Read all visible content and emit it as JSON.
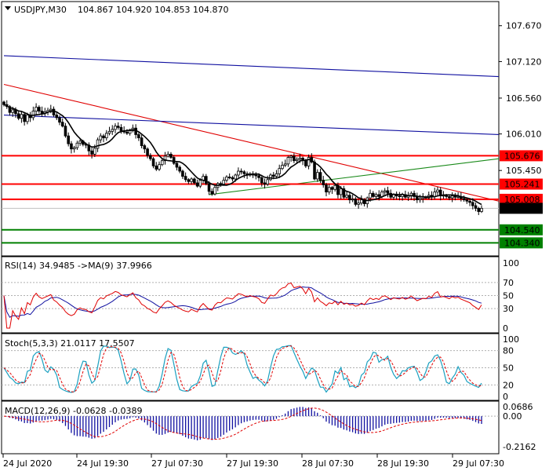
{
  "header": {
    "symbol": "USDJPY,M30",
    "ohlc": "104.867 104.920 104.853 104.870"
  },
  "colors": {
    "up": "#000000",
    "down": "#000000",
    "ma": "#000000",
    "trend_red": "#e00000",
    "trend_blue": "#1010a0",
    "trend_green": "#1a8a1a",
    "level_red": "#ff0000",
    "level_green": "#008000",
    "current": "#000000",
    "signal": "#e00000",
    "main_line": "#1aa0c0"
  },
  "chart_data": [
    {
      "type": "candlestick",
      "panel": "price",
      "title": "USDJPY,M30",
      "ylim": [
        104.14,
        108.04
      ],
      "y_ticks": [
        "107.670",
        "107.120",
        "106.560",
        "106.010",
        "105.450"
      ],
      "x_labels": [
        "24 Jul 2020",
        "24 Jul 19:30",
        "27 Jul 07:30",
        "27 Jul 19:30",
        "28 Jul 07:30",
        "28 Jul 19:30",
        "29 Jul 07:30"
      ],
      "close": [
        106.46,
        106.43,
        106.34,
        106.38,
        106.32,
        106.25,
        106.31,
        106.2,
        106.3,
        106.26,
        106.36,
        106.42,
        106.36,
        106.33,
        106.35,
        106.37,
        106.39,
        106.3,
        106.26,
        106.19,
        106.13,
        105.98,
        105.86,
        105.78,
        105.8,
        105.87,
        105.9,
        105.85,
        105.84,
        105.75,
        105.7,
        105.79,
        105.92,
        105.98,
        105.95,
        106.02,
        106.05,
        106.08,
        106.13,
        106.11,
        106.06,
        106.04,
        106.02,
        106.06,
        106.1,
        106.0,
        105.95,
        105.83,
        105.78,
        105.68,
        105.63,
        105.52,
        105.47,
        105.54,
        105.6,
        105.67,
        105.7,
        105.65,
        105.56,
        105.5,
        105.44,
        105.36,
        105.31,
        105.28,
        105.32,
        105.26,
        105.21,
        105.3,
        105.36,
        105.25,
        105.13,
        105.09,
        105.19,
        105.25,
        105.24,
        105.3,
        105.35,
        105.34,
        105.32,
        105.38,
        105.44,
        105.43,
        105.4,
        105.38,
        105.4,
        105.38,
        105.37,
        105.34,
        105.26,
        105.24,
        105.31,
        105.38,
        105.36,
        105.4,
        105.48,
        105.53,
        105.55,
        105.65,
        105.67,
        105.6,
        105.62,
        105.64,
        105.6,
        105.52,
        105.65,
        105.58,
        105.32,
        105.42,
        105.3,
        105.23,
        105.12,
        105.19,
        105.16,
        105.22,
        105.08,
        105.17,
        105.04,
        105.07,
        105.0,
        105.01,
        104.93,
        104.95,
        105.0,
        104.94,
        105.03,
        105.1,
        105.05,
        105.08,
        105.05,
        105.12,
        105.14,
        105.1,
        105.04,
        105.08,
        105.06,
        105.05,
        105.08,
        105.04,
        105.06,
        105.1,
        105.05,
        105.0,
        105.02,
        105.04,
        105.03,
        105.07,
        105.05,
        105.12,
        105.15,
        105.06,
        105.07,
        105.05,
        105.03,
        105.06,
        105.04,
        105.05,
        105.02,
        105.0,
        104.98,
        104.96,
        104.91,
        104.87,
        104.82,
        104.87
      ]
    },
    {
      "type": "line",
      "panel": "rsi",
      "title": "RSI(14) 34.9485 ->MA(9) 37.9966",
      "ylim": [
        0,
        100
      ],
      "y_ticks": [
        "100",
        "70",
        "50",
        "30",
        "0"
      ]
    },
    {
      "type": "line",
      "panel": "stoch",
      "title": "Stoch(5,3,3) 21.0117 17.5507",
      "ylim": [
        0,
        100
      ],
      "y_ticks": [
        "100",
        "80",
        "50",
        "20",
        "0"
      ]
    },
    {
      "type": "bar",
      "panel": "macd",
      "title": "MACD(12,26,9) -0.0628 -0.0389",
      "ylim": [
        -0.25,
        0.09
      ],
      "y_ticks": [
        "0.0686",
        "0.00",
        "-0.2162"
      ]
    }
  ],
  "trendlines": [
    {
      "name": "red-trend",
      "from": [
        0,
        106.77
      ],
      "to": [
        164,
        104.98
      ],
      "color": "#e00000"
    },
    {
      "name": "blue-trend-upper",
      "from": [
        0,
        107.21
      ],
      "to": [
        164,
        106.89
      ],
      "color": "#1010a0"
    },
    {
      "name": "blue-trend-lower",
      "from": [
        0,
        106.3
      ],
      "to": [
        164,
        106.0
      ],
      "color": "#1010a0"
    },
    {
      "name": "green-trend",
      "from": [
        70,
        105.08
      ],
      "to": [
        164,
        105.63
      ],
      "color": "#1a8a1a"
    }
  ],
  "levels": {
    "red": [
      "105.676",
      "105.241",
      "105.008"
    ],
    "green": [
      "104.540",
      "104.340"
    ],
    "current": "104.870"
  }
}
